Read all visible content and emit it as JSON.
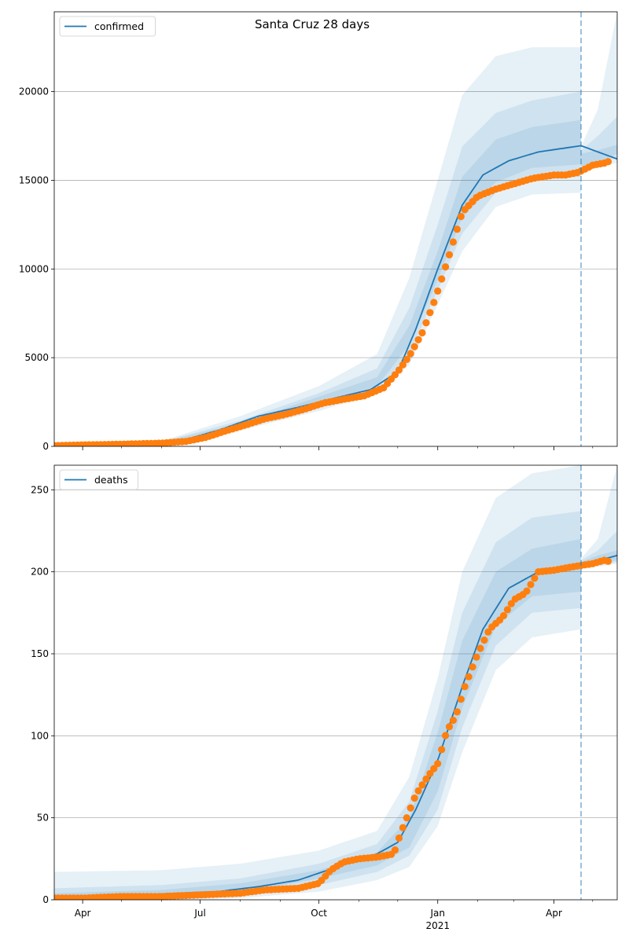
{
  "figure": {
    "title": "Santa Cruz 28 days"
  },
  "x_axis": {
    "start": "2020-03-10",
    "end": "2021-05-20",
    "major_ticks": [
      {
        "date": "2020-04-01",
        "label": "Apr",
        "sublabel": ""
      },
      {
        "date": "2020-07-01",
        "label": "Jul",
        "sublabel": ""
      },
      {
        "date": "2020-10-01",
        "label": "Oct",
        "sublabel": ""
      },
      {
        "date": "2021-01-01",
        "label": "Jan",
        "sublabel": "2021"
      },
      {
        "date": "2021-04-01",
        "label": "Apr",
        "sublabel": ""
      }
    ],
    "minor_ticks": [
      "2020-05-01",
      "2020-06-01",
      "2020-08-01",
      "2020-09-01",
      "2020-11-01",
      "2020-12-01",
      "2021-02-01",
      "2021-03-01",
      "2021-05-01"
    ],
    "forecast_date": "2021-04-22"
  },
  "colors": {
    "model_line": "#1f77b4",
    "band": "#1f77b4",
    "observed": "#ff7f0e",
    "grid": "#b0b0b0",
    "forecast_line": "#1f77b4"
  },
  "chart_data": [
    {
      "type": "line",
      "panel": "top",
      "legend": "confirmed",
      "legend_position": "upper-left",
      "grid": "horizontal",
      "ylim": [
        0,
        24500
      ],
      "yticks": [
        0,
        5000,
        10000,
        15000,
        20000
      ],
      "ytick_labels": [
        "0",
        "5000",
        "10000",
        "15000",
        "20000"
      ],
      "model": {
        "x": [
          "2020-03-10",
          "2020-05-01",
          "2020-06-15",
          "2020-07-15",
          "2020-08-15",
          "2020-09-15",
          "2020-10-15",
          "2020-11-10",
          "2020-12-01",
          "2020-12-15",
          "2021-01-01",
          "2021-01-20",
          "2021-02-05",
          "2021-02-25",
          "2021-03-20",
          "2021-04-22",
          "2021-05-20"
        ],
        "y": [
          30,
          100,
          300,
          900,
          1700,
          2200,
          2750,
          3200,
          4200,
          6600,
          10000,
          13600,
          15300,
          16100,
          16600,
          16950,
          16200
        ]
      },
      "bands": [
        {
          "x": [
            "2020-03-10",
            "2020-06-01",
            "2020-08-01",
            "2020-10-01",
            "2020-11-15",
            "2020-12-10",
            "2021-01-01",
            "2021-01-20",
            "2021-02-15",
            "2021-03-15",
            "2021-04-22"
          ],
          "low": [
            0,
            150,
            900,
            2000,
            3000,
            4600,
            8000,
            11000,
            13500,
            14200,
            14300
          ],
          "high": [
            40,
            300,
            1700,
            3400,
            5200,
            9500,
            15000,
            19800,
            22000,
            22500,
            22500
          ]
        },
        {
          "x": [
            "2020-03-10",
            "2020-06-01",
            "2020-08-01",
            "2020-10-01",
            "2020-11-15",
            "2020-12-10",
            "2021-01-01",
            "2021-01-20",
            "2021-02-15",
            "2021-03-15",
            "2021-04-22"
          ],
          "low": [
            0,
            170,
            1050,
            2200,
            3200,
            5200,
            8800,
            12000,
            14300,
            15000,
            15200
          ],
          "high": [
            35,
            260,
            1450,
            3000,
            4400,
            7800,
            12500,
            16900,
            18800,
            19500,
            20000
          ]
        },
        {
          "x": [
            "2020-03-10",
            "2020-06-01",
            "2020-08-01",
            "2020-10-01",
            "2020-11-15",
            "2020-12-10",
            "2021-01-01",
            "2021-01-20",
            "2021-02-15",
            "2021-03-15",
            "2021-04-22"
          ],
          "low": [
            10,
            190,
            1200,
            2400,
            3400,
            5700,
            9400,
            12900,
            14900,
            15700,
            15900
          ],
          "high": [
            32,
            230,
            1300,
            2800,
            3900,
            6800,
            11000,
            15200,
            17300,
            18000,
            18400
          ]
        }
      ],
      "forecast_bands": [
        {
          "x": [
            "2021-04-22",
            "2021-05-05",
            "2021-05-20"
          ],
          "low": [
            15600,
            15700,
            16000
          ],
          "high": [
            16900,
            19000,
            24500
          ]
        },
        {
          "x": [
            "2021-04-22",
            "2021-05-05",
            "2021-05-20"
          ],
          "low": [
            15700,
            15900,
            16300
          ],
          "high": [
            16700,
            17500,
            18600
          ]
        },
        {
          "x": [
            "2021-04-22",
            "2021-05-05",
            "2021-05-20"
          ],
          "low": [
            15800,
            16000,
            16500
          ],
          "high": [
            16500,
            16700,
            17000
          ]
        }
      ],
      "observed": {
        "x": [
          "2020-03-10",
          "2020-04-01",
          "2020-05-01",
          "2020-06-01",
          "2020-06-20",
          "2020-07-05",
          "2020-07-20",
          "2020-08-05",
          "2020-08-20",
          "2020-09-05",
          "2020-09-20",
          "2020-10-05",
          "2020-10-20",
          "2020-11-05",
          "2020-11-20",
          "2020-12-01",
          "2020-12-10",
          "2020-12-20",
          "2020-12-30",
          "2021-01-10",
          "2021-01-20",
          "2021-02-01",
          "2021-02-15",
          "2021-03-01",
          "2021-03-15",
          "2021-04-01",
          "2021-04-10",
          "2021-04-20",
          "2021-05-01",
          "2021-05-12",
          "2021-05-15"
        ],
        "y": [
          40,
          80,
          120,
          180,
          280,
          500,
          850,
          1200,
          1550,
          1800,
          2100,
          2450,
          2650,
          2850,
          3300,
          4200,
          5100,
          6400,
          8300,
          10800,
          13200,
          14100,
          14500,
          14800,
          15100,
          15300,
          15300,
          15450,
          15850,
          16000,
          16150
        ]
      }
    },
    {
      "type": "line",
      "panel": "bottom",
      "legend": "deaths",
      "legend_position": "upper-left",
      "grid": "horizontal",
      "ylim": [
        0,
        265
      ],
      "yticks": [
        0,
        50,
        100,
        150,
        200,
        250
      ],
      "ytick_labels": [
        "0",
        "50",
        "100",
        "150",
        "200",
        "250"
      ],
      "model": {
        "x": [
          "2020-03-10",
          "2020-05-15",
          "2020-07-15",
          "2020-08-15",
          "2020-09-15",
          "2020-10-15",
          "2020-11-15",
          "2020-12-01",
          "2020-12-15",
          "2021-01-01",
          "2021-01-20",
          "2021-02-05",
          "2021-02-25",
          "2021-03-20",
          "2021-04-22",
          "2021-05-20"
        ],
        "y": [
          2,
          3,
          5,
          8,
          12,
          20,
          28,
          35,
          55,
          85,
          130,
          165,
          190,
          200,
          204,
          210
        ]
      },
      "bands": [
        {
          "x": [
            "2020-03-10",
            "2020-06-01",
            "2020-08-01",
            "2020-10-01",
            "2020-11-15",
            "2020-12-10",
            "2021-01-01",
            "2021-01-20",
            "2021-02-15",
            "2021-03-15",
            "2021-04-22"
          ],
          "low": [
            0,
            0,
            1,
            5,
            12,
            20,
            45,
            90,
            140,
            160,
            165
          ],
          "high": [
            17,
            18,
            22,
            30,
            42,
            75,
            135,
            200,
            245,
            260,
            265
          ]
        },
        {
          "x": [
            "2020-03-10",
            "2020-06-01",
            "2020-08-01",
            "2020-10-01",
            "2020-11-15",
            "2020-12-10",
            "2021-01-01",
            "2021-01-20",
            "2021-02-15",
            "2021-03-15",
            "2021-04-22"
          ],
          "low": [
            0,
            1,
            3,
            9,
            17,
            27,
            55,
            105,
            155,
            175,
            178
          ],
          "high": [
            7,
            9,
            13,
            22,
            34,
            60,
            115,
            175,
            218,
            233,
            237
          ]
        },
        {
          "x": [
            "2020-03-10",
            "2020-06-01",
            "2020-08-01",
            "2020-10-01",
            "2020-11-15",
            "2020-12-10",
            "2021-01-01",
            "2021-01-20",
            "2021-02-15",
            "2021-03-15",
            "2021-04-22"
          ],
          "low": [
            0,
            2,
            4,
            13,
            21,
            32,
            66,
            117,
            167,
            185,
            188
          ],
          "high": [
            4,
            6,
            10,
            18,
            29,
            50,
            102,
            158,
            200,
            214,
            220
          ]
        }
      ],
      "forecast_bands": [
        {
          "x": [
            "2021-04-22",
            "2021-05-05",
            "2021-05-20"
          ],
          "low": [
            202,
            203,
            205
          ],
          "high": [
            208,
            220,
            265
          ]
        },
        {
          "x": [
            "2021-04-22",
            "2021-05-05",
            "2021-05-20"
          ],
          "low": [
            203,
            204,
            206
          ],
          "high": [
            207,
            213,
            225
          ]
        },
        {
          "x": [
            "2021-04-22",
            "2021-05-05",
            "2021-05-20"
          ],
          "low": [
            203,
            205,
            207
          ],
          "high": [
            206,
            210,
            213
          ]
        }
      ],
      "observed": {
        "x": [
          "2020-03-10",
          "2020-04-01",
          "2020-05-01",
          "2020-06-01",
          "2020-07-01",
          "2020-08-01",
          "2020-08-20",
          "2020-09-15",
          "2020-10-01",
          "2020-10-10",
          "2020-10-20",
          "2020-11-01",
          "2020-11-15",
          "2020-11-28",
          "2020-12-03",
          "2020-12-08",
          "2020-12-15",
          "2020-12-25",
          "2021-01-01",
          "2021-01-08",
          "2021-01-15",
          "2021-01-22",
          "2021-02-01",
          "2021-02-10",
          "2021-02-20",
          "2021-03-01",
          "2021-03-10",
          "2021-03-20",
          "2021-04-01",
          "2021-04-15",
          "2021-05-01",
          "2021-05-10",
          "2021-05-15"
        ],
        "y": [
          1,
          1,
          2,
          2,
          3,
          4,
          6,
          7,
          10,
          18,
          23,
          25,
          26,
          28,
          40,
          50,
          64,
          76,
          83,
          103,
          112,
          130,
          150,
          165,
          172,
          183,
          187,
          200,
          201,
          203,
          205,
          207,
          206
        ]
      }
    }
  ]
}
